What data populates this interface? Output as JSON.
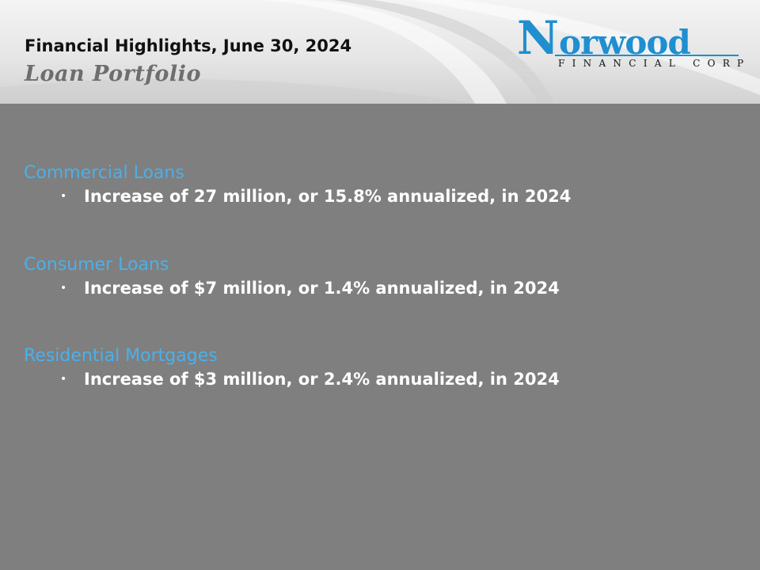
{
  "header": {
    "title": "Financial Highlights, June 30, 2024",
    "subtitle": "Loan Portfolio"
  },
  "logo": {
    "initial": "N",
    "wordmark_rest": "orwood",
    "tagline": "FINANCIAL CORP",
    "color": "#1f8fcf"
  },
  "sections": [
    {
      "heading": "Commercial Loans",
      "bullet_symbol": "•",
      "bullet": "Increase of 27 million, or 15.8% annualized, in 2024"
    },
    {
      "heading": "Consumer Loans",
      "bullet_symbol": "•",
      "bullet": "Increase of $7 million, or 1.4% annualized, in 2024"
    },
    {
      "heading": "Residential Mortgages",
      "bullet_symbol": "•",
      "bullet": "Increase of $3 million, or 2.4% annualized, in 2024"
    }
  ],
  "colors": {
    "background": "#7f7f7f",
    "heading": "#4ab0ec",
    "bullet_text": "#ffffff"
  }
}
